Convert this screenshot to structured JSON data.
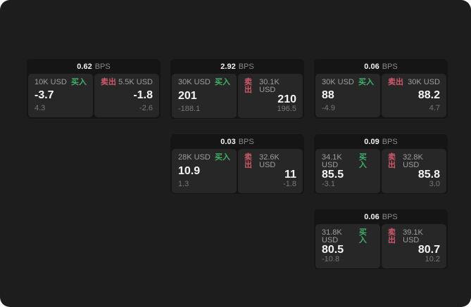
{
  "labels": {
    "unit": "BPS",
    "buy": "买入",
    "sell": "卖出"
  },
  "colors": {
    "background": "#1d1d1d",
    "card": "#151515",
    "panel": "#272727",
    "buy_green": "#3fae68",
    "sell_red": "#ce5a6c"
  },
  "cards": [
    {
      "bps": "0.62",
      "buy": {
        "amount": "10K USD",
        "value": "-3.7",
        "sub": "4.3"
      },
      "sell": {
        "amount": "5.5K USD",
        "value": "-1.8",
        "sub": "-2.6"
      }
    },
    {
      "bps": "2.92",
      "buy": {
        "amount": "30K USD",
        "value": "201",
        "sub": "-188.1"
      },
      "sell": {
        "amount": "30.1K USD",
        "value": "210",
        "sub": "196.5"
      }
    },
    {
      "bps": "0.06",
      "buy": {
        "amount": "30K USD",
        "value": "88",
        "sub": "-4.9"
      },
      "sell": {
        "amount": "30K USD",
        "value": "88.2",
        "sub": "4.7"
      }
    },
    {
      "bps": "0.03",
      "buy": {
        "amount": "28K USD",
        "value": "10.9",
        "sub": "1.3"
      },
      "sell": {
        "amount": "32.6K USD",
        "value": "11",
        "sub": "-1.8"
      }
    },
    {
      "bps": "0.09",
      "buy": {
        "amount": "34.1K USD",
        "value": "85.5",
        "sub": "-3.1"
      },
      "sell": {
        "amount": "32.8K USD",
        "value": "85.8",
        "sub": "3.0"
      }
    },
    {
      "bps": "0.06",
      "buy": {
        "amount": "31.8K USD",
        "value": "80.5",
        "sub": "-10.8"
      },
      "sell": {
        "amount": "39.1K USD",
        "value": "80.7",
        "sub": "10.2"
      }
    }
  ]
}
